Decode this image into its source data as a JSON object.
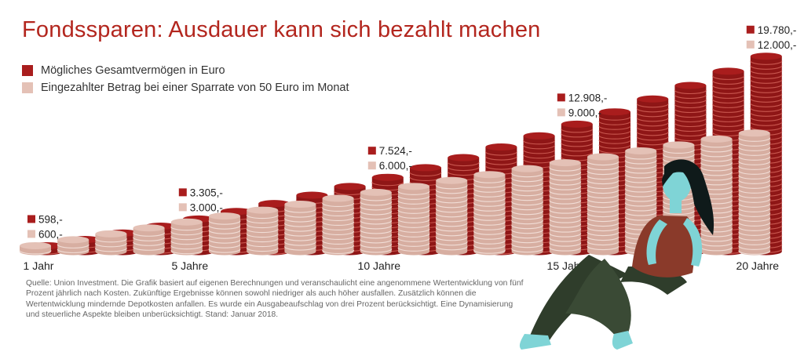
{
  "title": "Fondssparen: Ausdauer kann sich bezahlt machen",
  "legend": [
    {
      "label": "Mögliches Gesamtvermögen in Euro",
      "color": "#a91d1d"
    },
    {
      "label": "Eingezahlter Betrag bei einer Sparrate von 50 Euro im Monat",
      "color": "#e4c1b6"
    }
  ],
  "source": "Quelle: Union Investment. Die Grafik basiert auf eigenen Berechnungen und veranschaulicht eine angenommene Wertentwicklung von fünf Prozent jährlich nach Kosten. Zukünftige Ergebnisse können sowohl niedriger als auch höher ausfallen. Zusätzlich können die Wertentwicklung mindernde Depotkosten anfallen. Es wurde ein Ausgabeaufschlag von drei Prozent berücksichtigt. Eine Dynamisierung und steuerliche Aspekte bleiben unberücksichtigt. Stand: Januar 2018.",
  "chart_data": {
    "type": "bar",
    "categories": [
      "1",
      "2",
      "3",
      "4",
      "5",
      "6",
      "7",
      "8",
      "9",
      "10",
      "11",
      "12",
      "13",
      "14",
      "15",
      "16",
      "17",
      "18",
      "19",
      "20"
    ],
    "x_tick_labels": [
      {
        "index": 0,
        "label": "1 Jahr"
      },
      {
        "index": 4,
        "label": "5 Jahre"
      },
      {
        "index": 9,
        "label": "10 Jahre"
      },
      {
        "index": 14,
        "label": "15 Jahre"
      },
      {
        "index": 19,
        "label": "20 Jahre"
      }
    ],
    "series": [
      {
        "name": "Mögliches Gesamtvermögen in Euro",
        "values": [
          598,
          1226,
          1885,
          2578,
          3305,
          4069,
          4871,
          5713,
          6597,
          7524,
          8498,
          9521,
          10594,
          11722,
          12908,
          14150,
          15455,
          16825,
          18263,
          19780
        ]
      },
      {
        "name": "Eingezahlter Betrag bei einer Sparrate von 50 Euro im Monat",
        "values": [
          600,
          1200,
          1800,
          2400,
          3000,
          3600,
          4200,
          4800,
          5400,
          6000,
          6600,
          7200,
          7800,
          8400,
          9000,
          9600,
          10200,
          10800,
          11400,
          12000
        ]
      }
    ],
    "data_labels": [
      {
        "index": 0,
        "total": "598,-",
        "paid": "600,-"
      },
      {
        "index": 4,
        "total": "3.305,-",
        "paid": "3.000,-"
      },
      {
        "index": 9,
        "total": "7.524,-",
        "paid": "6.000,-"
      },
      {
        "index": 14,
        "total": "12.908,-",
        "paid": "9.000,-"
      },
      {
        "index": 19,
        "total": "19.780,-",
        "paid": "12.000,-"
      }
    ],
    "ylim": [
      0,
      20000
    ],
    "colors": {
      "total_top": "#a91d1d",
      "total_side": "#8f1616",
      "total_line": "#c9574f",
      "paid_top": "#e4c1b6",
      "paid_side": "#d7aea1",
      "paid_line": "#f1ddd6"
    }
  }
}
